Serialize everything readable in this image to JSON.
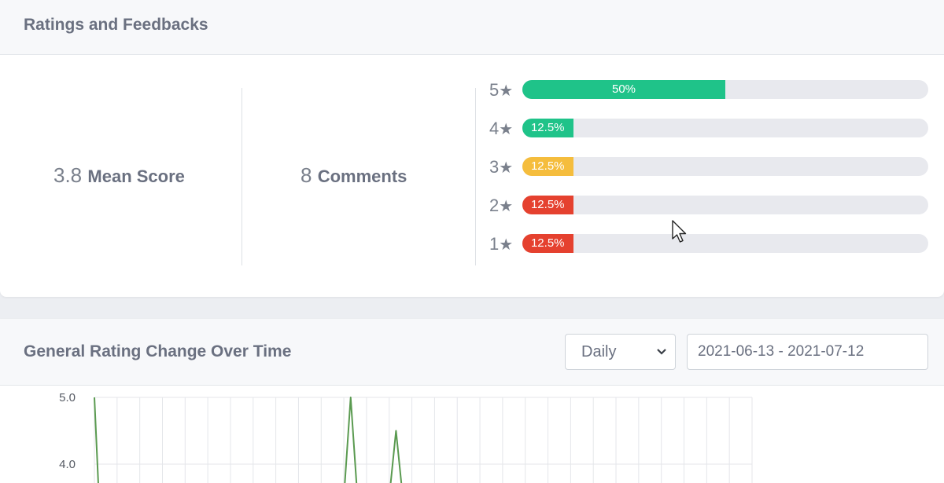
{
  "ratings_card": {
    "title": "Ratings and Feedbacks",
    "mean_score": {
      "value": "3.8",
      "label": "Mean Score"
    },
    "comments": {
      "value": "8",
      "label": "Comments"
    },
    "distribution": [
      {
        "stars": "5",
        "percent": 50,
        "label": "50%",
        "color": "#1fc389"
      },
      {
        "stars": "4",
        "percent": 12.5,
        "label": "12.5%",
        "color": "#1fc389"
      },
      {
        "stars": "3",
        "percent": 12.5,
        "label": "12.5%",
        "color": "#f5bd3d"
      },
      {
        "stars": "2",
        "percent": 12.5,
        "label": "12.5%",
        "color": "#e5412f"
      },
      {
        "stars": "1",
        "percent": 12.5,
        "label": "12.5%",
        "color": "#e5412f"
      }
    ],
    "star_glyph": "★"
  },
  "trend_card": {
    "title": "General Rating Change Over Time",
    "period_select": {
      "value": "Daily",
      "icon": "chevron-down-icon"
    },
    "date_range": "2021-06-13 - 2021-07-12"
  },
  "chart_data": {
    "type": "line",
    "y_ticks": [
      "5.0",
      "4.0"
    ],
    "ylim_visible": [
      4.0,
      5.0
    ],
    "grid": true,
    "series_color": "#5a9a50",
    "series": [
      {
        "points": [
          [
            0,
            5.0
          ],
          [
            0.2,
            3.5
          ],
          [
            11,
            3.5
          ],
          [
            11.3,
            5.0
          ],
          [
            11.6,
            3.5
          ],
          [
            13,
            3.5
          ],
          [
            13.3,
            4.5
          ],
          [
            13.6,
            3.5
          ]
        ]
      }
    ],
    "x_count": 30
  }
}
